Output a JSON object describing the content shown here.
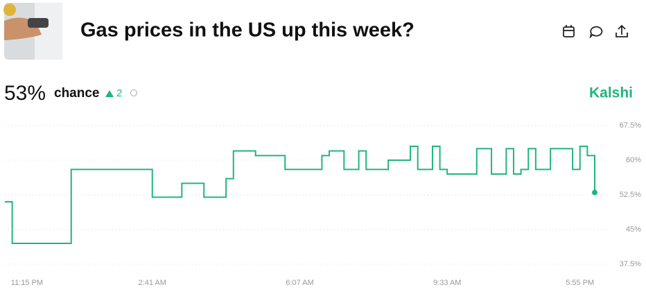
{
  "header": {
    "title": "Gas prices in the US up this week?",
    "probability": "53%",
    "chance_label": "chance",
    "change": "2",
    "source": "Kalshi"
  },
  "chart_data": {
    "type": "step-line",
    "categories": [
      null,
      null,
      null,
      "11:15 PM",
      null,
      null,
      null,
      null,
      null,
      null,
      null,
      null,
      null,
      null,
      null,
      null,
      null,
      null,
      null,
      null,
      "2:41 AM",
      null,
      null,
      null,
      null,
      null,
      null,
      null,
      null,
      null,
      null,
      null,
      null,
      null,
      null,
      null,
      null,
      null,
      null,
      null,
      "6:07 AM",
      null,
      null,
      null,
      null,
      null,
      null,
      null,
      null,
      null,
      null,
      null,
      null,
      null,
      null,
      null,
      null,
      null,
      null,
      null,
      "9:33 AM",
      null,
      null,
      null,
      null,
      null,
      null,
      null,
      null,
      null,
      null,
      null,
      null,
      null,
      null,
      null,
      null,
      null,
      "5:55 PM",
      null,
      null
    ],
    "series": [
      {
        "color": "#21b57d",
        "values": [
          51,
          42,
          42,
          42,
          42,
          42,
          42,
          42,
          42,
          58,
          58,
          58,
          58,
          58,
          58,
          58,
          58,
          58,
          58,
          58,
          52,
          52,
          52,
          52,
          55,
          55,
          55,
          52,
          52,
          52,
          56,
          62,
          62,
          62,
          61,
          61,
          61,
          61,
          58,
          58,
          58,
          58,
          58,
          61,
          62,
          62,
          58,
          58,
          62,
          58,
          58,
          58,
          60,
          60,
          60,
          63,
          58,
          58,
          63,
          58,
          57,
          57,
          57,
          57,
          62.5,
          62.5,
          57,
          57,
          62.5,
          57,
          58,
          62.5,
          58,
          58,
          62.5,
          62.5,
          62.5,
          58,
          63,
          61,
          53
        ]
      }
    ],
    "ylim": [
      37.5,
      67.5
    ],
    "yticks": [
      {
        "value": 37.5,
        "label": "37.5%"
      },
      {
        "value": 45,
        "label": "45%"
      },
      {
        "value": 52.5,
        "label": "52.5%"
      },
      {
        "value": 60,
        "label": "60%"
      },
      {
        "value": 67.5,
        "label": "67.5%"
      }
    ],
    "grid": true
  }
}
